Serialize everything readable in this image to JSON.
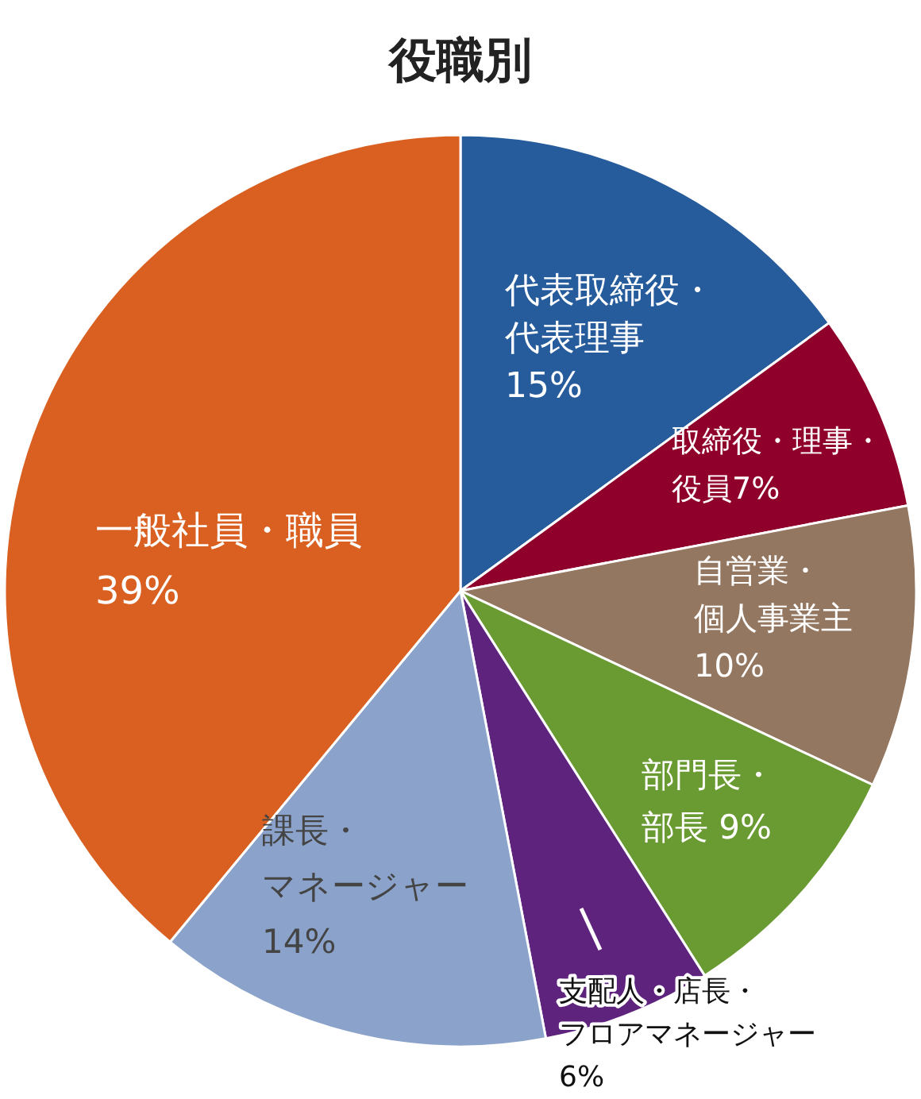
{
  "chart_data": {
    "type": "pie",
    "title": "役職別",
    "categories": [
      "代表取締役・代表理事",
      "取締役・理事・役員",
      "自営業・個人事業主",
      "部門長・部長",
      "支配人・店長・フロアマネージャー",
      "課長・マネージャー",
      "一般社員・職員"
    ],
    "values": [
      15,
      7,
      10,
      9,
      6,
      14,
      39
    ],
    "value_labels": [
      "15%",
      "7%",
      "10%",
      "9%",
      "6%",
      "14%",
      "39%"
    ],
    "colors": [
      "#265b9c",
      "#8f002b",
      "#937761",
      "#6a9a32",
      "#5e237d",
      "#8ba3cb",
      "#d96020"
    ]
  }
}
